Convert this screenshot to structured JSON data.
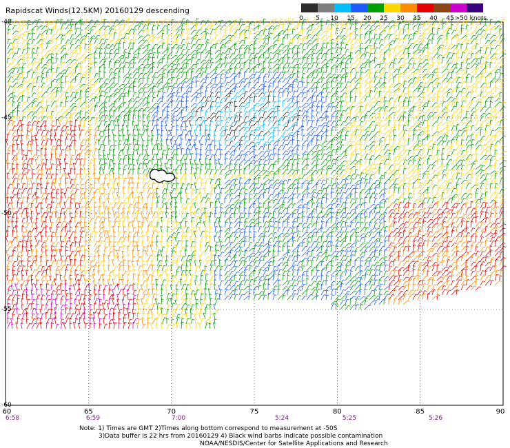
{
  "title": "Rapidscat Winds(12.5KM) 20160129 descending",
  "legend": {
    "labels": [
      "0",
      "5",
      "10",
      "15",
      "20",
      "25",
      "30",
      "35",
      "40",
      "45",
      ">50 knots"
    ],
    "colors": [
      "#2b2b2b",
      "#7f7f7f",
      "#00bfff",
      "#1e5bff",
      "#00a000",
      "#ffd700",
      "#ff8c00",
      "#e60000",
      "#8b4513",
      "#cc00cc",
      "#3a0080"
    ]
  },
  "lat_labels": [
    "-40",
    "-45",
    "-50",
    "-55",
    "-60"
  ],
  "lon_labels": [
    "60",
    "65",
    "70",
    "75",
    "80",
    "85",
    "90"
  ],
  "time_labels": [
    "6:58",
    "6:59",
    "7:00",
    "5:24",
    "5:25",
    "5:26"
  ],
  "notes": {
    "line1": "Note: 1) Times are GMT 2)Times along bottom correspond to measurement at -50S",
    "line2": "3)Data buffer is 22 hrs from 20160129 4) Black wind barbs indicate possible contamination",
    "line3": "NOAA/NESDIS/Center for Satellite Applications and Research"
  },
  "icons": {
    "wind_barb_field": "wind-barb-icon",
    "island": "island-icon"
  }
}
